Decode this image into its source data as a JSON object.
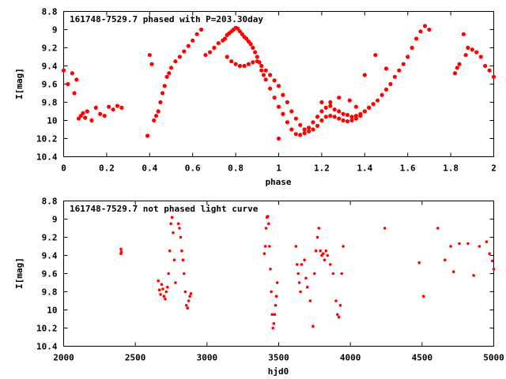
{
  "chart_data": [
    {
      "type": "scatter",
      "title": "161748-7529.7 phased with P=203.30day",
      "xlabel": "phase",
      "ylabel": "I[mag]",
      "xlim": [
        0,
        2
      ],
      "ylim": [
        10.4,
        8.8
      ],
      "y_inverted": true,
      "grid": false,
      "xticks": [
        "0",
        "0.2",
        "0.4",
        "0.6",
        "0.8",
        "1",
        "1.2",
        "1.4",
        "1.6",
        "1.8",
        "2"
      ],
      "yticks": [
        "8.8",
        "9",
        "9.2",
        "9.4",
        "9.6",
        "9.8",
        "10",
        "10.2",
        "10.4"
      ],
      "marker_color": "#ff0000",
      "series": [
        {
          "x": [
            0.0,
            0.02,
            0.04,
            0.05,
            0.06,
            0.07,
            0.08,
            0.09,
            0.1,
            0.11,
            0.13,
            0.15,
            0.17,
            0.19,
            0.21,
            0.23,
            0.25,
            0.27,
            0.39,
            0.4,
            0.41,
            0.42,
            0.43,
            0.44,
            0.45,
            0.46,
            0.47,
            0.48,
            0.49,
            0.5,
            0.52,
            0.54,
            0.56,
            0.58,
            0.6,
            0.62,
            0.64,
            0.66,
            0.68,
            0.7,
            0.72,
            0.74,
            0.75,
            0.76,
            0.77,
            0.78,
            0.79,
            0.8,
            0.81,
            0.82,
            0.83,
            0.84,
            0.85,
            0.86,
            0.87,
            0.88,
            0.89,
            0.9,
            0.91,
            0.92,
            0.93,
            0.94,
            0.96,
            0.98,
            1.0,
            1.02,
            1.04,
            1.06,
            1.08,
            1.1,
            1.12,
            1.14,
            1.16,
            1.18,
            1.2,
            1.22,
            1.24,
            1.26,
            1.28,
            1.3,
            1.32,
            1.34,
            1.36,
            1.38,
            1.4,
            1.42,
            1.44,
            1.46,
            1.48,
            1.5,
            1.52,
            1.54,
            1.56,
            1.58,
            1.6,
            1.62,
            1.64,
            1.66,
            1.68,
            1.7,
            0.76,
            0.78,
            0.8,
            0.82,
            0.84,
            0.86,
            0.88,
            0.9,
            0.92,
            0.94,
            0.96,
            0.98,
            1.0,
            1.02,
            1.04,
            1.06,
            1.08,
            1.1,
            1.12,
            1.14,
            1.16,
            1.18,
            1.2,
            1.22,
            1.24,
            1.26,
            1.28,
            1.3,
            1.32,
            1.34,
            1.36,
            1.38,
            1.4,
            1.42,
            1.44,
            1.0,
            1.82,
            1.83,
            1.84,
            1.86,
            1.87,
            1.88,
            1.9,
            1.92,
            1.94,
            1.96,
            1.98,
            2.0,
            1.2,
            1.24,
            1.28,
            1.33,
            1.36,
            1.4,
            1.45,
            1.5
          ],
          "y": [
            9.45,
            9.6,
            9.48,
            9.7,
            9.55,
            9.98,
            9.95,
            9.92,
            9.97,
            9.9,
            10.0,
            9.86,
            9.93,
            9.95,
            9.85,
            9.88,
            9.84,
            9.86,
            10.17,
            9.28,
            9.38,
            10.0,
            9.95,
            9.9,
            9.8,
            9.7,
            9.62,
            9.52,
            9.48,
            9.42,
            9.35,
            9.3,
            9.24,
            9.18,
            9.12,
            9.05,
            9.0,
            9.28,
            9.25,
            9.2,
            9.15,
            9.12,
            9.1,
            9.06,
            9.04,
            9.02,
            9.0,
            8.98,
            8.99,
            9.02,
            9.05,
            9.08,
            9.1,
            9.13,
            9.16,
            9.2,
            9.25,
            9.3,
            9.36,
            9.45,
            9.5,
            9.55,
            9.65,
            9.75,
            9.85,
            9.93,
            10.02,
            10.1,
            10.15,
            10.16,
            10.14,
            10.08,
            10.02,
            9.96,
            9.9,
            9.86,
            9.84,
            9.88,
            9.9,
            9.93,
            9.94,
            9.96,
            9.95,
            9.93,
            9.9,
            9.86,
            9.82,
            9.78,
            9.72,
            9.66,
            9.6,
            9.52,
            9.45,
            9.38,
            9.3,
            9.2,
            9.1,
            9.02,
            8.96,
            9.0,
            9.3,
            9.35,
            9.38,
            9.4,
            9.4,
            9.38,
            9.36,
            9.35,
            9.4,
            9.45,
            9.5,
            9.56,
            9.62,
            9.72,
            9.8,
            9.9,
            9.98,
            10.05,
            10.1,
            10.12,
            10.1,
            10.06,
            10.0,
            9.96,
            9.95,
            9.96,
            9.98,
            10.0,
            10.01,
            10.0,
            9.98,
            9.95,
            9.9,
            9.86,
            9.82,
            10.2,
            9.48,
            9.42,
            9.38,
            9.05,
            9.28,
            9.2,
            9.22,
            9.25,
            9.3,
            9.4,
            9.45,
            9.52,
            9.8,
            9.8,
            9.75,
            9.78,
            9.85,
            9.5,
            9.28,
            9.43
          ]
        }
      ]
    },
    {
      "type": "scatter",
      "title": "161748-7529.7 not phased light curve",
      "xlabel": "hjd0",
      "ylabel": "I[mag]",
      "xlim": [
        2000,
        5000
      ],
      "ylim": [
        10.4,
        8.8
      ],
      "y_inverted": true,
      "grid": false,
      "xticks": [
        "2000",
        "2500",
        "3000",
        "3500",
        "4000",
        "4500",
        "5000"
      ],
      "yticks": [
        "8.8",
        "9",
        "9.2",
        "9.4",
        "9.6",
        "9.8",
        "10",
        "10.2",
        "10.4"
      ],
      "marker_color": "#ff0000",
      "series": [
        {
          "x": [
            2400,
            2400,
            2402,
            2660,
            2668,
            2676,
            2684,
            2692,
            2700,
            2708,
            2716,
            2724,
            2732,
            2740,
            2748,
            2756,
            2764,
            2772,
            2780,
            2800,
            2808,
            2816,
            2824,
            2832,
            2840,
            2848,
            2856,
            2864,
            2872,
            2880,
            2888,
            3400,
            3406,
            3412,
            3418,
            3424,
            3430,
            3436,
            3442,
            3448,
            3454,
            3460,
            3466,
            3472,
            3478,
            3484,
            3490,
            3620,
            3628,
            3636,
            3644,
            3652,
            3660,
            3680,
            3690,
            3700,
            3720,
            3740,
            3750,
            3760,
            3770,
            3780,
            3790,
            3800,
            3810,
            3820,
            3830,
            3840,
            3860,
            3880,
            3900,
            3910,
            3920,
            3930,
            3940,
            3950,
            4240,
            4480,
            4510,
            4610,
            4660,
            4700,
            4720,
            4760,
            4820,
            4860,
            4900,
            4950,
            4970,
            4990,
            5000
          ],
          "y": [
            9.33,
            9.38,
            9.36,
            9.68,
            9.78,
            9.83,
            9.72,
            9.77,
            9.85,
            9.88,
            9.8,
            9.75,
            9.6,
            9.35,
            9.05,
            8.98,
            9.15,
            9.45,
            9.7,
            9.05,
            9.1,
            9.2,
            9.35,
            9.45,
            9.6,
            9.8,
            9.95,
            9.98,
            9.9,
            9.85,
            9.82,
            9.38,
            9.3,
            9.1,
            8.98,
            8.97,
            9.05,
            9.3,
            9.55,
            9.8,
            10.05,
            10.2,
            10.15,
            10.05,
            9.95,
            9.85,
            9.7,
            9.3,
            9.5,
            9.6,
            9.7,
            9.8,
            9.5,
            9.45,
            9.65,
            9.75,
            9.9,
            10.18,
            9.6,
            9.35,
            9.2,
            9.1,
            9.35,
            9.4,
            9.38,
            9.45,
            9.35,
            9.4,
            9.5,
            9.6,
            9.9,
            10.05,
            10.08,
            9.95,
            9.6,
            9.3,
            9.1,
            9.48,
            9.85,
            9.1,
            9.45,
            9.3,
            9.58,
            9.27,
            9.27,
            9.62,
            9.3,
            9.25,
            9.38,
            9.46,
            9.55
          ]
        }
      ]
    }
  ]
}
